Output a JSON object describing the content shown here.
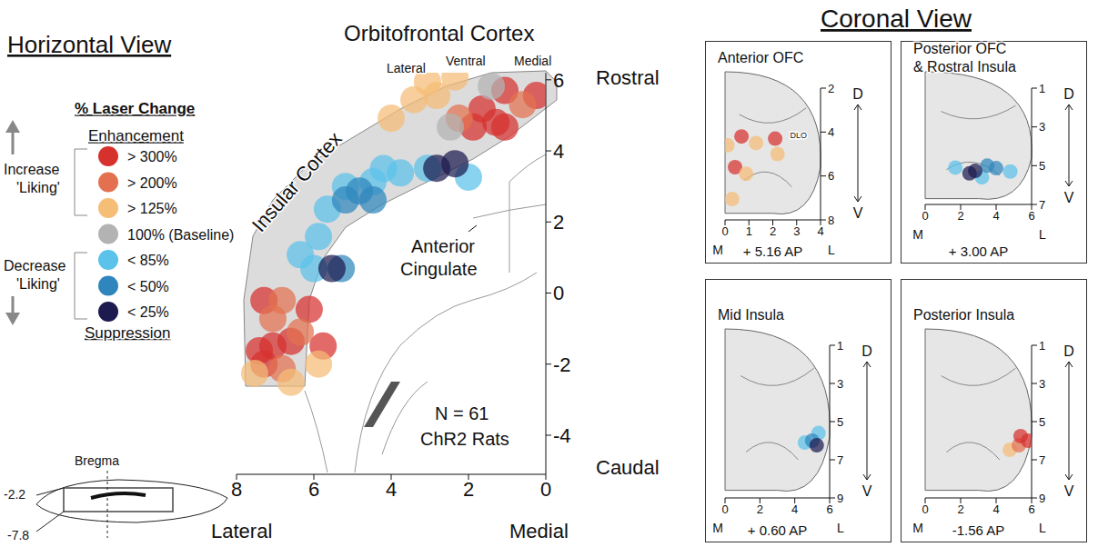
{
  "headings": [
    "Horizontal View",
    "Coronal View"
  ],
  "chart_data": [
    {
      "type": "scatter",
      "title": "Horizontal View",
      "region_labels": {
        "top": "Orbitofrontal Cortex",
        "sub": [
          "Lateral",
          "Ventral",
          "Medial"
        ],
        "insula": "Insular Cortex",
        "cingulate": "Anterior Cingulate"
      },
      "annotations": [
        "N = 61",
        "ChR2 Rats"
      ],
      "x_end_labels": [
        "Lateral",
        "Medial"
      ],
      "y_end_labels": [
        "Rostral",
        "Caudal"
      ],
      "legend_title": "% Laser Change",
      "legend_groups": [
        "Enhancement",
        "Suppression"
      ],
      "legend_arrows": [
        "Increase 'Liking'",
        "Decrease 'Liking'"
      ],
      "inset": {
        "label": "Bregma",
        "levels": [
          "-2.2",
          "-7.8"
        ]
      },
      "legend": "left",
      "xlim": [
        0,
        8
      ],
      "xticks": [
        8,
        6,
        4,
        2,
        0
      ],
      "ylim": [
        -5.1,
        6.2
      ],
      "yticks": [
        6,
        4,
        2,
        0,
        -2,
        -4
      ],
      "series": [
        {
          "name": "> 300%",
          "color": "#d7312e",
          "values": [
            [
              1.06,
              5.7
            ],
            [
              0.24,
              5.56
            ],
            [
              1.65,
              5.18
            ],
            [
              1.29,
              4.8
            ],
            [
              1.88,
              4.67
            ],
            [
              1.06,
              4.67
            ],
            [
              7.29,
              -0.21
            ],
            [
              7.06,
              -1.49
            ],
            [
              7.41,
              -1.62
            ],
            [
              6.12,
              -0.46
            ],
            [
              6.59,
              -1.36
            ],
            [
              5.76,
              -1.49
            ],
            [
              7.29,
              -2.0
            ]
          ]
        },
        {
          "name": "> 200%",
          "color": "#e3714f",
          "values": [
            [
              2.24,
              4.92
            ],
            [
              0.6,
              5.3
            ],
            [
              6.82,
              -0.21
            ],
            [
              7.06,
              -0.72
            ],
            [
              6.35,
              -1.1
            ],
            [
              6.82,
              -2.13
            ]
          ]
        },
        {
          "name": "> 125%",
          "color": "#f5bd76",
          "values": [
            [
              3.06,
              5.95
            ],
            [
              2.35,
              6.08
            ],
            [
              3.41,
              5.44
            ],
            [
              2.82,
              5.56
            ],
            [
              4.0,
              4.92
            ],
            [
              6.59,
              -2.51
            ],
            [
              7.53,
              -2.26
            ],
            [
              5.88,
              -2.0
            ]
          ]
        },
        {
          "name": "100% (Baseline)",
          "color": "#b3b3b3",
          "values": [
            [
              2.47,
              4.67
            ],
            [
              1.41,
              5.82
            ]
          ]
        },
        {
          "name": "< 85%",
          "color": "#5bc2ea",
          "values": [
            [
              3.06,
              3.51
            ],
            [
              3.76,
              3.38
            ],
            [
              4.47,
              3.13
            ],
            [
              5.18,
              3.0
            ],
            [
              5.65,
              2.36
            ],
            [
              5.88,
              1.59
            ],
            [
              6.0,
              0.69
            ],
            [
              6.35,
              1.08
            ],
            [
              2.0,
              3.26
            ],
            [
              4.2,
              3.5
            ]
          ]
        },
        {
          "name": "< 50%",
          "color": "#2f86bd",
          "values": [
            [
              4.82,
              2.87
            ],
            [
              4.47,
              2.62
            ],
            [
              5.18,
              2.62
            ],
            [
              5.29,
              0.69
            ]
          ]
        },
        {
          "name": "< 25%",
          "color": "#1c1a4f",
          "values": [
            [
              2.82,
              3.51
            ],
            [
              2.35,
              3.64
            ],
            [
              5.53,
              0.69
            ]
          ]
        }
      ]
    },
    {
      "type": "scatter",
      "title": "Anterior OFC",
      "subtitle": "+ 5.16 AP",
      "annotations": [
        "DLO"
      ],
      "x_end_labels": [
        "M",
        "L"
      ],
      "y_end_labels": [
        "D",
        "V"
      ],
      "xlim": [
        0,
        4
      ],
      "xticks": [
        0,
        1,
        2,
        3,
        4
      ],
      "ylim": [
        2,
        8
      ],
      "yticks": [
        2,
        4,
        6,
        8
      ],
      "series": [
        {
          "name": "> 300%",
          "color": "#d7312e",
          "values": [
            [
              0.69,
              4.2
            ],
            [
              2.1,
              4.3
            ],
            [
              0.42,
              5.6
            ]
          ]
        },
        {
          "name": "> 125%",
          "color": "#f5bd76",
          "values": [
            [
              1.3,
              4.5
            ],
            [
              0.1,
              4.6
            ],
            [
              0.88,
              5.9
            ],
            [
              2.2,
              5.0
            ],
            [
              0.3,
              7.05
            ]
          ]
        }
      ]
    },
    {
      "type": "scatter",
      "title": "Posterior OFC & Rostral Insula",
      "subtitle": "+ 3.00 AP",
      "x_end_labels": [
        "M",
        "L"
      ],
      "y_end_labels": [
        "D",
        "V"
      ],
      "xlim": [
        0,
        6
      ],
      "xticks": [
        0,
        2,
        4,
        6
      ],
      "ylim": [
        1,
        7
      ],
      "yticks": [
        1,
        3,
        5,
        7
      ],
      "series": [
        {
          "name": "< 85%",
          "color": "#5bc2ea",
          "values": [
            [
              1.7,
              5.1
            ],
            [
              4.8,
              5.3
            ],
            [
              3.2,
              5.6
            ]
          ]
        },
        {
          "name": "< 50%",
          "color": "#2f86bd",
          "values": [
            [
              4.0,
              5.13
            ],
            [
              3.5,
              5.0
            ]
          ]
        },
        {
          "name": "< 25%",
          "color": "#1c1a4f",
          "values": [
            [
              2.82,
              5.27
            ],
            [
              2.5,
              5.4
            ]
          ]
        }
      ]
    },
    {
      "type": "scatter",
      "title": "Mid Insula",
      "subtitle": "+ 0.60 AP",
      "x_end_labels": [
        "M",
        "L"
      ],
      "y_end_labels": [
        "D",
        "V"
      ],
      "xlim": [
        0,
        6
      ],
      "xticks": [
        0,
        2,
        4,
        6
      ],
      "ylim": [
        1,
        9
      ],
      "yticks": [
        1,
        3,
        5,
        7,
        9
      ],
      "series": [
        {
          "name": "< 85%",
          "color": "#5bc2ea",
          "values": [
            [
              4.58,
              6.1
            ],
            [
              5.36,
              5.6
            ]
          ]
        },
        {
          "name": "< 50%",
          "color": "#2f86bd",
          "values": [
            [
              5.0,
              6.0
            ]
          ]
        },
        {
          "name": "< 25%",
          "color": "#1c1a4f",
          "values": [
            [
              5.26,
              6.24
            ]
          ]
        }
      ]
    },
    {
      "type": "scatter",
      "title": "Posterior Insula",
      "subtitle": "-1.56 AP",
      "x_end_labels": [
        "M",
        "L"
      ],
      "y_end_labels": [
        "D",
        "V"
      ],
      "xlim": [
        0,
        6
      ],
      "xticks": [
        0,
        2,
        4,
        6
      ],
      "ylim": [
        1,
        9
      ],
      "yticks": [
        1,
        3,
        5,
        7,
        9
      ],
      "series": [
        {
          "name": "> 125%",
          "color": "#f5bd76",
          "values": [
            [
              4.77,
              6.48
            ]
          ]
        },
        {
          "name": "> 200%",
          "color": "#e3714f",
          "values": [
            [
              5.28,
              6.24
            ]
          ]
        },
        {
          "name": "> 300%",
          "color": "#d7312e",
          "values": [
            [
              5.8,
              6.0
            ],
            [
              5.38,
              5.76
            ]
          ]
        }
      ]
    }
  ]
}
